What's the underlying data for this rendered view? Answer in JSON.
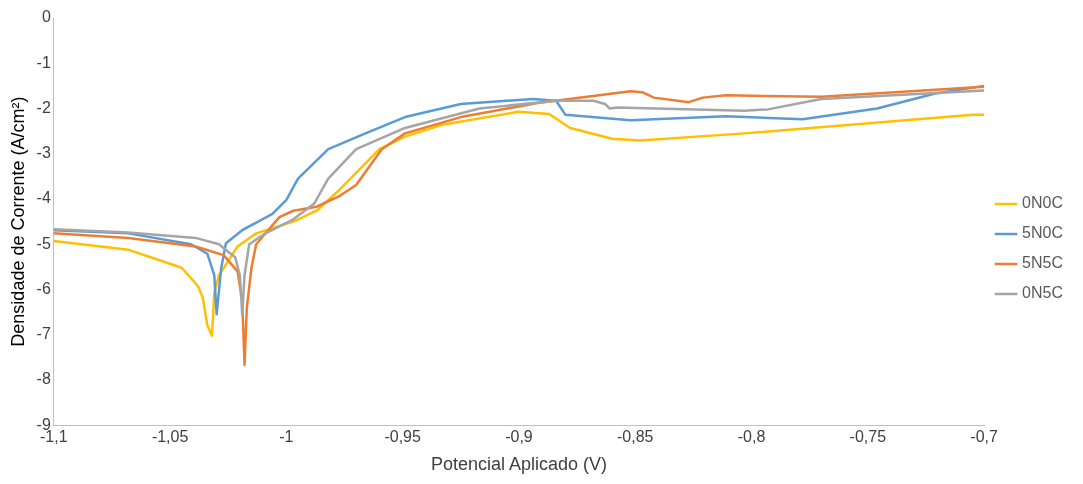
{
  "chart_data": {
    "type": "line",
    "xlabel": "Potencial Aplicado (V)",
    "ylabel": "Densidade de Corrente (A/cm²)",
    "xlim": [
      -1.1,
      -0.7
    ],
    "ylim": [
      -9,
      0
    ],
    "xticks": [
      {
        "value": -1.1,
        "label": "-1,1"
      },
      {
        "value": -1.05,
        "label": "-1,05"
      },
      -1,
      {
        "value": -0.95,
        "label": "-0,95"
      },
      {
        "value": -0.9,
        "label": "-0,9"
      },
      {
        "value": -0.85,
        "label": "-0,85"
      },
      {
        "value": -0.8,
        "label": "-0,8"
      },
      {
        "value": -0.75,
        "label": "-0,75"
      },
      {
        "value": -0.7,
        "label": "-0,7"
      }
    ],
    "yticks": [
      0,
      -1,
      -2,
      -3,
      -4,
      -5,
      -6,
      -7,
      -8,
      -9
    ],
    "grid": false,
    "legend": "right",
    "marker": "none",
    "line_style": "solid",
    "series": [
      {
        "name": "0N0C",
        "color": "#ffc000",
        "x": [
          -1.1,
          -1.068,
          -1.045,
          -1.038,
          -1.036,
          -1.034,
          -1.032,
          -1.031,
          -1.029,
          -1.021,
          -1.013,
          -0.997,
          -0.987,
          -0.977,
          -0.96,
          -0.949,
          -0.933,
          -0.9,
          -0.887,
          -0.878,
          -0.86,
          -0.848,
          -0.803,
          -0.705,
          -0.7
        ],
        "values": [
          -4.93,
          -5.12,
          -5.52,
          -5.93,
          -6.17,
          -6.79,
          -7.02,
          -6.07,
          -5.69,
          -5.05,
          -4.76,
          -4.5,
          -4.26,
          -3.79,
          -2.9,
          -2.62,
          -2.36,
          -2.07,
          -2.12,
          -2.43,
          -2.67,
          -2.71,
          -2.55,
          -2.14,
          -2.14
        ]
      },
      {
        "name": "5N0C",
        "color": "#5b9bd5",
        "x": [
          -1.1,
          -1.068,
          -1.041,
          -1.034,
          -1.031,
          -1.03,
          -1.028,
          -1.026,
          -1.019,
          -1.006,
          -1.0,
          -0.995,
          -0.982,
          -0.966,
          -0.949,
          -0.925,
          -0.894,
          -0.884,
          -0.88,
          -0.852,
          -0.811,
          -0.778,
          -0.746,
          -0.721,
          -0.7
        ],
        "values": [
          -4.69,
          -4.76,
          -5.0,
          -5.21,
          -5.69,
          -6.55,
          -5.52,
          -4.98,
          -4.69,
          -4.33,
          -4.02,
          -3.55,
          -2.9,
          -2.55,
          -2.19,
          -1.9,
          -1.79,
          -1.83,
          -2.14,
          -2.26,
          -2.17,
          -2.24,
          -2.0,
          -1.67,
          -1.5
        ]
      },
      {
        "name": "5N5C",
        "color": "#ed7d31",
        "x": [
          -1.1,
          -1.068,
          -1.039,
          -1.027,
          -1.021,
          -1.019,
          -1.018,
          -1.017,
          -1.015,
          -1.013,
          -1.003,
          -0.997,
          -0.987,
          -0.977,
          -0.97,
          -0.959,
          -0.949,
          -0.925,
          -0.892,
          -0.852,
          -0.847,
          -0.842,
          -0.827,
          -0.821,
          -0.811,
          -0.77,
          -0.7
        ],
        "values": [
          -4.76,
          -4.86,
          -5.05,
          -5.24,
          -5.6,
          -6.24,
          -7.67,
          -6.4,
          -5.52,
          -5.0,
          -4.4,
          -4.26,
          -4.17,
          -3.93,
          -3.69,
          -2.9,
          -2.55,
          -2.19,
          -1.88,
          -1.62,
          -1.64,
          -1.76,
          -1.86,
          -1.76,
          -1.71,
          -1.74,
          -1.52
        ]
      },
      {
        "name": "0N5C",
        "color": "#a5a5a5",
        "x": [
          -1.1,
          -1.068,
          -1.039,
          -1.029,
          -1.022,
          -1.02,
          -1.019,
          -1.018,
          -1.016,
          -1.009,
          -0.997,
          -0.988,
          -0.982,
          -0.97,
          -0.949,
          -0.917,
          -0.884,
          -0.868,
          -0.863,
          -0.861,
          -0.858,
          -0.803,
          -0.793,
          -0.77,
          -0.7
        ],
        "values": [
          -4.67,
          -4.74,
          -4.86,
          -5.0,
          -5.29,
          -5.69,
          -6.55,
          -5.69,
          -5.0,
          -4.76,
          -4.45,
          -4.1,
          -3.55,
          -2.9,
          -2.43,
          -2.0,
          -1.83,
          -1.83,
          -1.9,
          -2.0,
          -1.98,
          -2.05,
          -2.02,
          -1.79,
          -1.6
        ]
      }
    ]
  }
}
